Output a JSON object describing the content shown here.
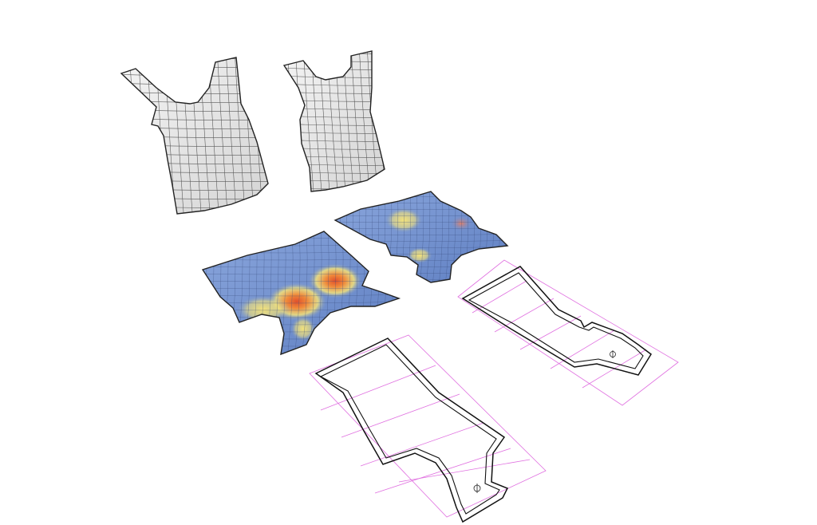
{
  "palette": {
    "background": "#ffffff",
    "shirt_fill": "#e6e6e6",
    "mesh_line": "#5a5a5a",
    "outline": "#222222",
    "heat_blue": "#6f8fcf",
    "heat_yellow": "#f3e27a",
    "heat_orange": "#f08a3a",
    "heat_red": "#e0502c",
    "pattern_guide": "#e070e0",
    "pattern_line": "#111111"
  },
  "pieces": {
    "front_shirt": {
      "kind": "3d-garment",
      "view": "front"
    },
    "back_shirt": {
      "kind": "3d-garment",
      "view": "back"
    },
    "front_flat": {
      "kind": "flattened-strain-map",
      "hotspots": [
        "bust-left",
        "bust-right",
        "center"
      ]
    },
    "back_flat": {
      "kind": "flattened-strain-map",
      "hotspots": [
        "upper-back",
        "shoulder"
      ]
    },
    "front_pattern": {
      "kind": "sewing-pattern",
      "mark": "Ф"
    },
    "back_pattern": {
      "kind": "sewing-pattern",
      "mark": "Ф"
    }
  }
}
